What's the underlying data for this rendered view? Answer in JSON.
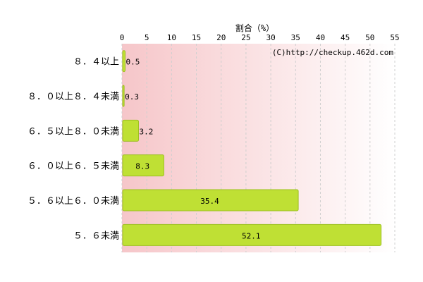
{
  "chart_data": {
    "type": "bar",
    "orientation": "horizontal",
    "title": "",
    "xlabel": "割合（%）",
    "ylabel": "",
    "xlim": [
      0,
      55
    ],
    "x_ticks": [
      0,
      5,
      10,
      15,
      20,
      25,
      30,
      35,
      40,
      45,
      50,
      55
    ],
    "x_tick_labels": [
      "0",
      "5",
      "10",
      "15",
      "20",
      "25",
      "30",
      "35",
      "40",
      "45",
      "50",
      "55"
    ],
    "grid": true,
    "legend": "none",
    "categories": [
      "８．４以上",
      "８．０以上８．４未満",
      "６．５以上８．０未満",
      "６．０以上６．５未満",
      "５．６以上６．０未満",
      "５．６未満"
    ],
    "values": [
      0.5,
      0.3,
      3.2,
      8.3,
      35.4,
      52.1
    ],
    "value_labels": [
      "0.5",
      "0.3",
      "3.2",
      "8.3",
      "35.4",
      "52.1"
    ],
    "annotation": "(C)http://checkup.462d.com",
    "colors": {
      "bar_fill": "#bfe034",
      "bar_stroke": "#9cc021",
      "background_left": "#f6c6c9",
      "background_right": "#ffffff",
      "grid": "#cfcfcf",
      "text": "#000000"
    }
  }
}
